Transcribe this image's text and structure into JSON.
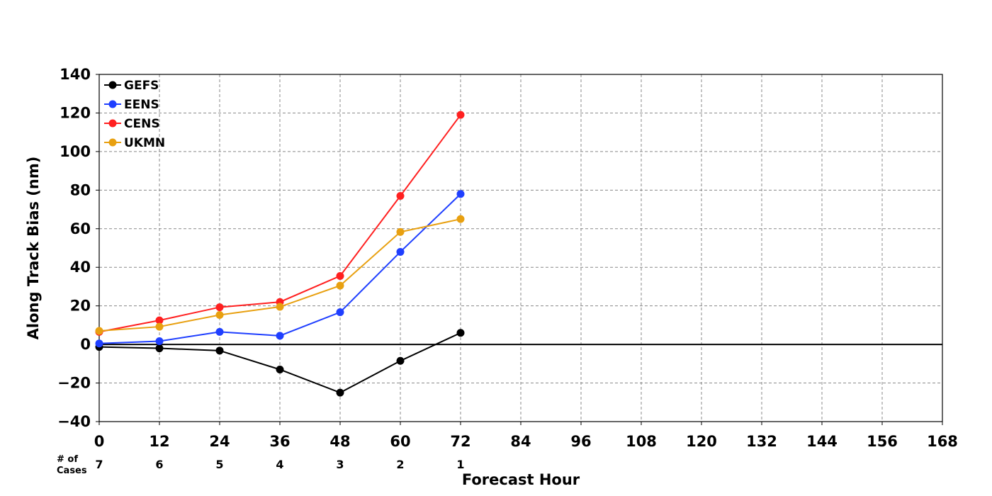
{
  "chart_data": {
    "type": "line",
    "xlabel": "Forecast Hour",
    "ylabel": "Along Track Bias (nm)",
    "xlim": [
      0,
      168
    ],
    "ylim": [
      -40,
      140
    ],
    "x_ticks": [
      0,
      12,
      24,
      36,
      48,
      60,
      72,
      84,
      96,
      108,
      120,
      132,
      144,
      156,
      168
    ],
    "y_ticks": [
      -40,
      -20,
      0,
      20,
      40,
      60,
      80,
      100,
      120,
      140
    ],
    "x_tick_labels": [
      "0",
      "12",
      "24",
      "36",
      "48",
      "60",
      "72",
      "84",
      "96",
      "108",
      "120",
      "132",
      "144",
      "156",
      "168"
    ],
    "y_tick_labels": [
      "−40",
      "−20",
      "0",
      "20",
      "40",
      "60",
      "80",
      "100",
      "120",
      "140"
    ],
    "grid": true,
    "legend_position": "top-left",
    "cases_title": "# of\nCases",
    "cases": [
      {
        "x": 0,
        "label": "7"
      },
      {
        "x": 12,
        "label": "6"
      },
      {
        "x": 24,
        "label": "5"
      },
      {
        "x": 36,
        "label": "4"
      },
      {
        "x": 48,
        "label": "3"
      },
      {
        "x": 60,
        "label": "2"
      },
      {
        "x": 72,
        "label": "1"
      }
    ],
    "x": [
      0,
      12,
      24,
      36,
      48,
      60,
      72
    ],
    "series": [
      {
        "name": "GEFS",
        "color": "#000000",
        "values": [
          -1.3,
          -2,
          -3.2,
          -13,
          -25,
          -8.5,
          6
        ]
      },
      {
        "name": "EENS",
        "color": "#1f3fff",
        "values": [
          0.5,
          1.7,
          6.5,
          4.5,
          16.7,
          48,
          78
        ]
      },
      {
        "name": "CENS",
        "color": "#ff2020",
        "values": [
          6.5,
          12.5,
          19.3,
          22,
          35.5,
          77,
          119
        ]
      },
      {
        "name": "UKMN",
        "color": "#e8a010",
        "values": [
          7,
          9.2,
          15.3,
          19.5,
          30.5,
          58.3,
          65
        ]
      }
    ]
  }
}
